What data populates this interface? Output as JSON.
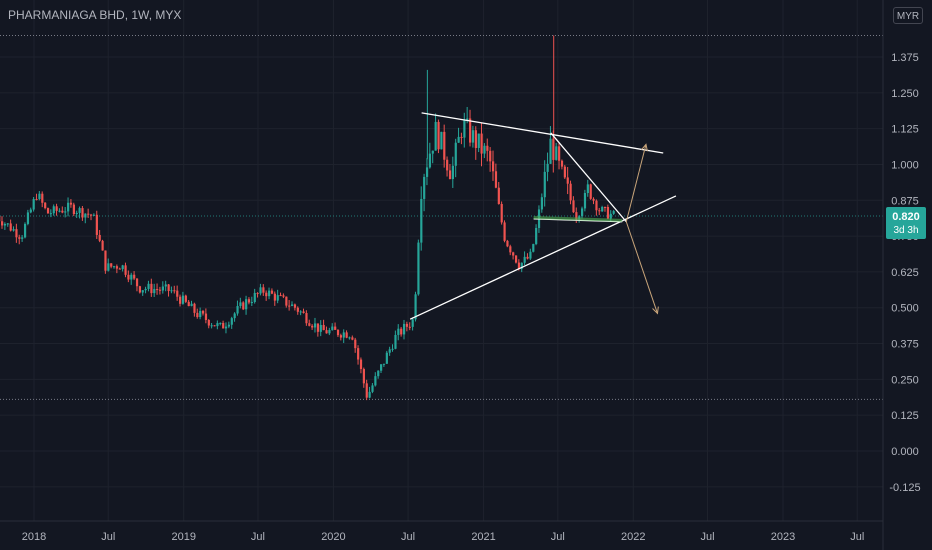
{
  "header": {
    "title": "PHARMANIAGA BHD, 1W, MYX",
    "currency": "MYR"
  },
  "price_label": {
    "value": "0.820",
    "countdown": "3d 3h"
  },
  "colors": {
    "background": "#131722",
    "up": "#26a69a",
    "down": "#ef5350",
    "text": "#b2b5be",
    "trendline": "#ffffff",
    "projection": "#c9a57a",
    "badge": "#26a69a"
  },
  "chart_data": {
    "type": "candlestick",
    "title": "PHARMANIAGA BHD, 1W, MYX",
    "ylabel": "MYR",
    "ylim": [
      -0.2,
      1.5
    ],
    "y_ticks": [
      "1.375",
      "1.250",
      "1.125",
      "1.000",
      "0.875",
      "0.750",
      "0.625",
      "0.500",
      "0.375",
      "0.250",
      "0.125",
      "0.000",
      "-0.125"
    ],
    "y_tick_values": [
      1.375,
      1.25,
      1.125,
      1.0,
      0.875,
      0.75,
      0.625,
      0.5,
      0.375,
      0.25,
      0.125,
      0.0,
      -0.125
    ],
    "x_ticks": [
      "2018",
      "Jul",
      "2019",
      "Jul",
      "2020",
      "Jul",
      "2021",
      "Jul",
      "2022",
      "Jul",
      "2023",
      "Jul"
    ],
    "x_tick_dates": [
      "2018-01-01",
      "2018-07-01",
      "2019-01-01",
      "2019-07-01",
      "2020-01-01",
      "2020-07-01",
      "2021-01-01",
      "2021-07-01",
      "2022-01-01",
      "2022-07-01",
      "2023-01-01",
      "2023-07-01"
    ],
    "x_range": [
      "2017-10-01",
      "2023-10-01"
    ],
    "last_price": 0.82,
    "horizontal_lines": [
      {
        "price": 1.45
      },
      {
        "price": 0.18
      }
    ],
    "key_points": [
      {
        "date": "2017-10-01",
        "price": 0.82
      },
      {
        "date": "2017-12-01",
        "price": 0.75
      },
      {
        "date": "2018-01-08",
        "price": 0.9
      },
      {
        "date": "2018-02-01",
        "price": 0.83
      },
      {
        "date": "2018-04-01",
        "price": 0.85
      },
      {
        "date": "2018-05-25",
        "price": 0.82
      },
      {
        "date": "2018-06-25",
        "price": 0.64
      },
      {
        "date": "2018-08-01",
        "price": 0.65
      },
      {
        "date": "2018-09-15",
        "price": 0.57
      },
      {
        "date": "2018-12-01",
        "price": 0.56
      },
      {
        "date": "2019-02-01",
        "price": 0.48
      },
      {
        "date": "2019-04-01",
        "price": 0.43
      },
      {
        "date": "2019-06-01",
        "price": 0.52
      },
      {
        "date": "2019-07-15",
        "price": 0.56
      },
      {
        "date": "2019-10-01",
        "price": 0.5
      },
      {
        "date": "2019-12-01",
        "price": 0.42
      },
      {
        "date": "2020-02-15",
        "price": 0.41
      },
      {
        "date": "2020-03-23",
        "price": 0.19
      },
      {
        "date": "2020-06-01",
        "price": 0.4
      },
      {
        "date": "2020-07-15",
        "price": 0.46
      },
      {
        "date": "2020-08-03",
        "price": 0.95
      },
      {
        "date": "2020-09-07",
        "price": 1.12
      },
      {
        "date": "2020-10-15",
        "price": 0.97
      },
      {
        "date": "2020-11-10",
        "price": 1.14
      },
      {
        "date": "2021-01-15",
        "price": 1.02
      },
      {
        "date": "2021-02-22",
        "price": 0.74
      },
      {
        "date": "2021-03-29",
        "price": 0.65
      },
      {
        "date": "2021-04-26",
        "price": 0.68
      },
      {
        "date": "2021-05-10",
        "price": 0.78
      },
      {
        "date": "2021-06-14",
        "price": 1.08
      },
      {
        "date": "2021-07-12",
        "price": 0.95
      },
      {
        "date": "2021-08-16",
        "price": 0.82
      },
      {
        "date": "2021-09-13",
        "price": 0.91
      },
      {
        "date": "2021-10-11",
        "price": 0.84
      },
      {
        "date": "2021-11-15",
        "price": 0.82
      }
    ],
    "spikes": [
      {
        "date": "2020-08-17",
        "high": 1.33
      },
      {
        "date": "2021-06-21",
        "high": 1.45
      }
    ],
    "drawings": [
      {
        "kind": "trendline",
        "from": {
          "date": "2020-08-03",
          "price": 1.18
        },
        "to": {
          "date": "2022-03-15",
          "price": 1.04
        }
      },
      {
        "kind": "trendline",
        "from": {
          "date": "2020-07-06",
          "price": 0.46
        },
        "to": {
          "date": "2022-04-15",
          "price": 0.89
        }
      },
      {
        "kind": "trendline",
        "from": {
          "date": "2021-06-14",
          "price": 1.11
        },
        "to": {
          "date": "2021-12-15",
          "price": 0.8
        }
      },
      {
        "kind": "trendline",
        "from": {
          "date": "2021-05-03",
          "price": 0.81
        },
        "to": {
          "date": "2021-12-05",
          "price": 0.8
        }
      },
      {
        "kind": "arrow",
        "from": {
          "date": "2021-12-15",
          "price": 0.8
        },
        "to": {
          "date": "2022-02-01",
          "price": 1.07
        }
      },
      {
        "kind": "arrow",
        "from": {
          "date": "2021-12-15",
          "price": 0.8
        },
        "to": {
          "date": "2022-03-01",
          "price": 0.48
        }
      }
    ]
  }
}
